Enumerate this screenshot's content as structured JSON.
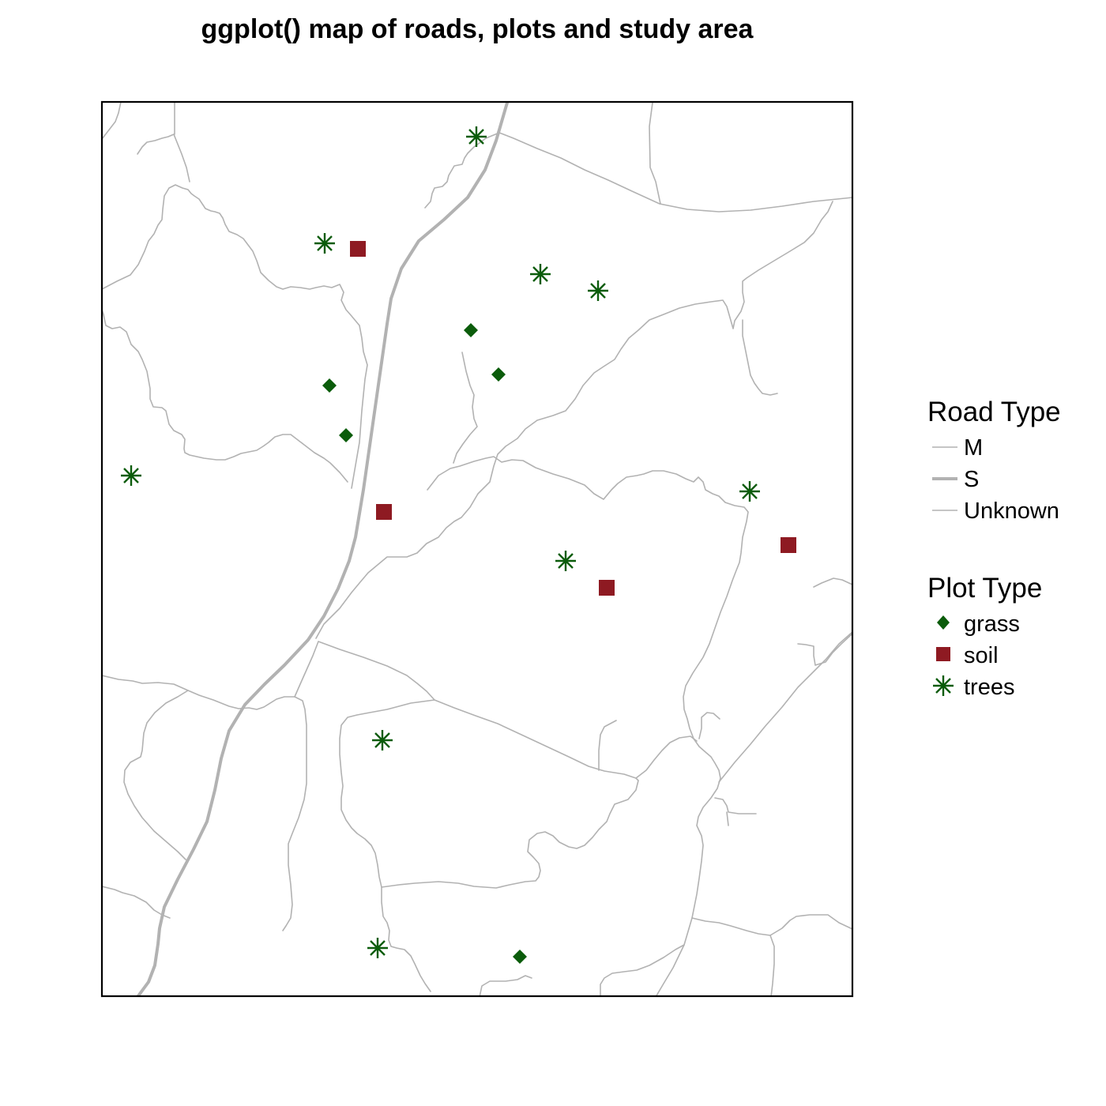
{
  "map": {
    "title": "ggplot() map of roads, plots and study area",
    "background": "#ffffff",
    "border_color": "#000000"
  },
  "legend": {
    "road_type": {
      "title": "Road Type",
      "items": [
        {
          "label": "M",
          "color": "#b2b2b2",
          "style": "thin-line"
        },
        {
          "label": "S",
          "color": "#b2b2b2",
          "style": "thick-line"
        },
        {
          "label": "Unknown",
          "color": "#b2b2b2",
          "style": "thin-line"
        }
      ]
    },
    "plot_type": {
      "title": "Plot Type",
      "items": [
        {
          "label": "grass",
          "color": "#0b5c0b",
          "symbol": "diamond"
        },
        {
          "label": "soil",
          "color": "#8e1a22",
          "symbol": "square"
        },
        {
          "label": "trees",
          "color": "#0b5c0b",
          "symbol": "asterisk"
        }
      ]
    }
  },
  "colors": {
    "road": "#b2b2b2",
    "grass": "#0b5c0b",
    "soil": "#8e1a22",
    "trees": "#0b5c0b"
  }
}
